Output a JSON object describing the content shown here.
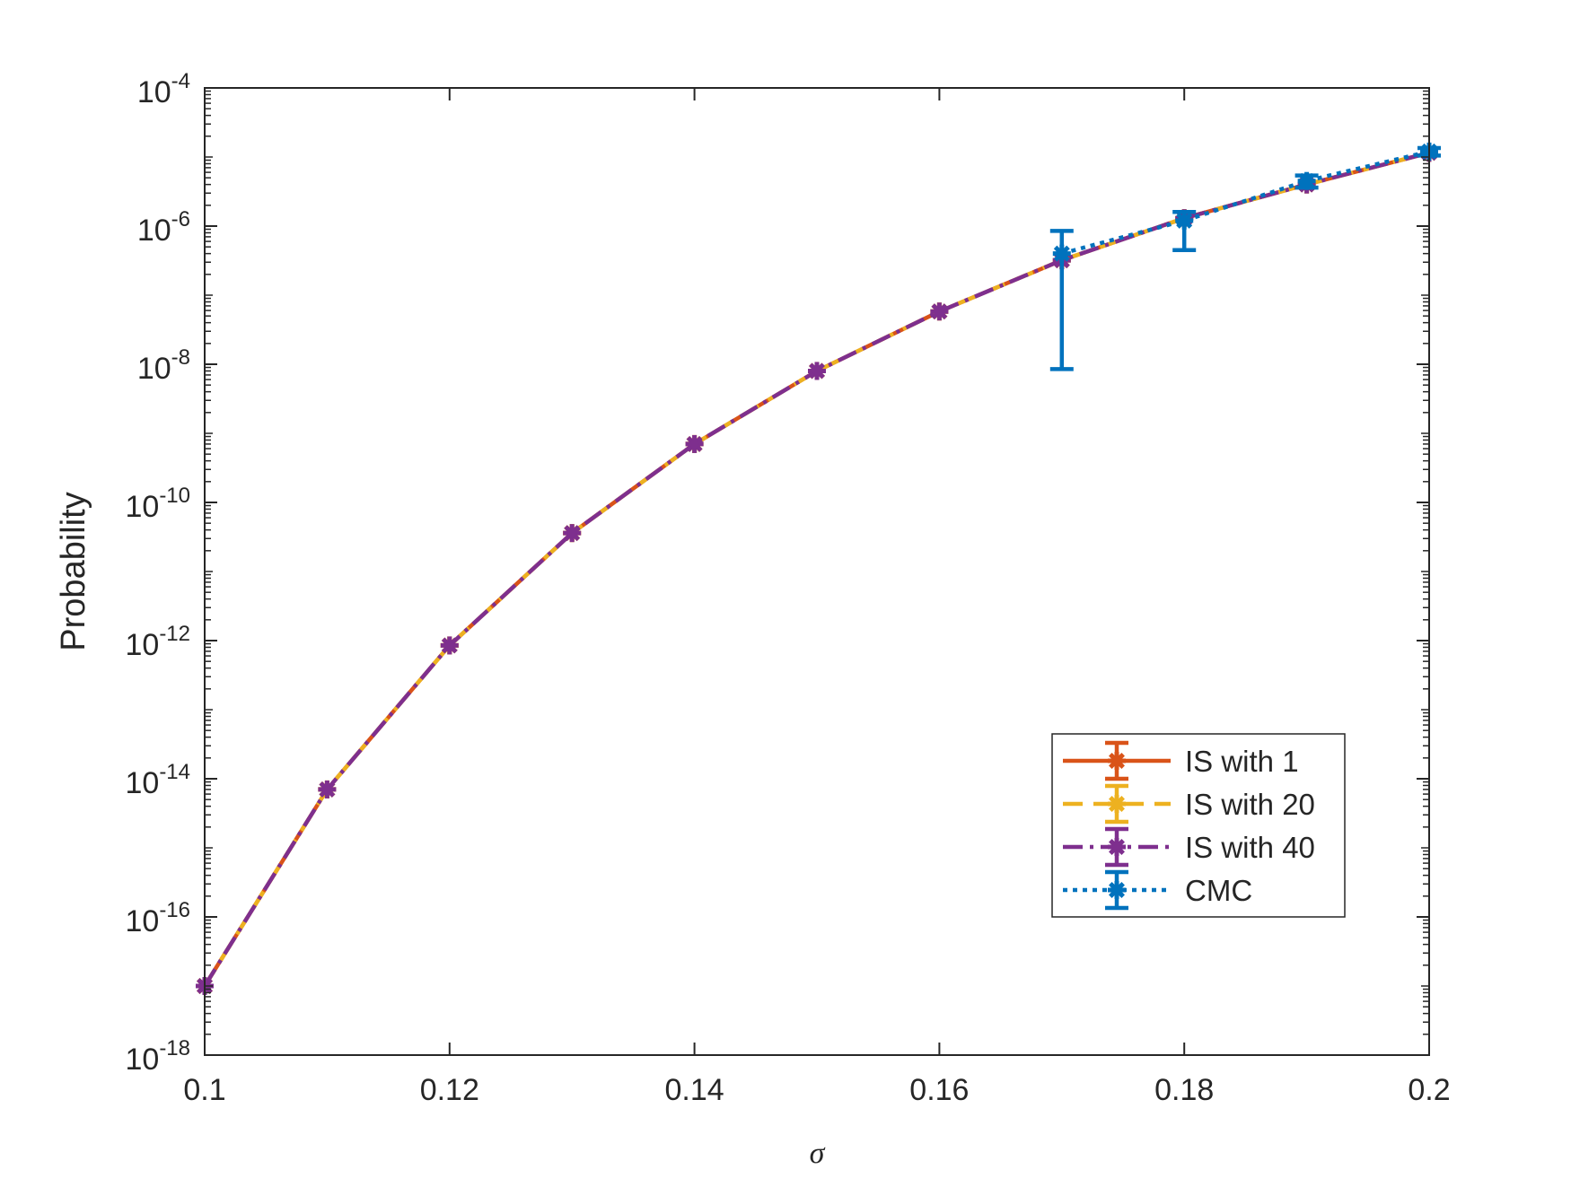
{
  "chart_data": {
    "type": "line",
    "title": "",
    "xlabel": "σ",
    "ylabel": "Probability",
    "xlim": [
      0.1,
      0.2
    ],
    "ylim": [
      1e-18,
      0.0001
    ],
    "yscale": "log",
    "grid": false,
    "legend_position": "bottom-right",
    "x_ticks": [
      "0.1",
      "0.12",
      "0.14",
      "0.16",
      "0.18",
      "0.2"
    ],
    "y_ticks": [
      {
        "base": "10",
        "exp": "-18",
        "value": 1e-18
      },
      {
        "base": "10",
        "exp": "-16",
        "value": 1e-16
      },
      {
        "base": "10",
        "exp": "-14",
        "value": 1e-14
      },
      {
        "base": "10",
        "exp": "-12",
        "value": 1e-12
      },
      {
        "base": "10",
        "exp": "-10",
        "value": 1e-10
      },
      {
        "base": "10",
        "exp": "-8",
        "value": 1e-08
      },
      {
        "base": "10",
        "exp": "-6",
        "value": 1e-06
      },
      {
        "base": "10",
        "exp": "-4",
        "value": 0.0001
      }
    ],
    "series": [
      {
        "name": "IS with 1",
        "color": "#D95319",
        "dash": "solid",
        "x": [
          0.1,
          0.11,
          0.12,
          0.13,
          0.14,
          0.15,
          0.16,
          0.17,
          0.18,
          0.19,
          0.2
        ],
        "y": [
          1e-17,
          7e-15,
          8.5e-13,
          3.6e-11,
          7e-10,
          8e-09,
          5.8e-08,
          3.2e-07,
          1.3e-06,
          4e-06,
          1.15e-05
        ]
      },
      {
        "name": "IS with 20",
        "color": "#EDB120",
        "dash": "dashed",
        "x": [
          0.1,
          0.11,
          0.12,
          0.13,
          0.14,
          0.15,
          0.16,
          0.17,
          0.18,
          0.19,
          0.2
        ],
        "y": [
          1e-17,
          7e-15,
          8.5e-13,
          3.6e-11,
          7e-10,
          8e-09,
          5.8e-08,
          3.2e-07,
          1.3e-06,
          4e-06,
          1.15e-05
        ]
      },
      {
        "name": "IS with 40",
        "color": "#7E2F8E",
        "dash": "dashdot",
        "x": [
          0.1,
          0.11,
          0.12,
          0.13,
          0.14,
          0.15,
          0.16,
          0.17,
          0.18,
          0.19,
          0.2
        ],
        "y": [
          1e-17,
          7e-15,
          8.5e-13,
          3.6e-11,
          7e-10,
          8e-09,
          5.8e-08,
          3.2e-07,
          1.3e-06,
          4e-06,
          1.15e-05
        ]
      },
      {
        "name": "CMC",
        "color": "#0072BD",
        "dash": "dotted",
        "x": [
          0.17,
          0.18,
          0.19,
          0.2
        ],
        "y": [
          4e-07,
          1.2e-06,
          4.5e-06,
          1.2e-05
        ],
        "y_lower": [
          8.5e-09,
          4.5e-07,
          3.6e-06,
          1.05e-05
        ],
        "y_upper": [
          8.5e-07,
          1.6e-06,
          5.4e-06,
          1.35e-05
        ]
      }
    ]
  }
}
